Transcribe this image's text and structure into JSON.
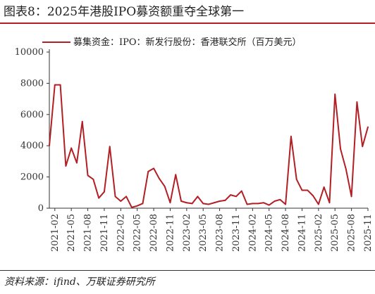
{
  "figure": {
    "title": "图表8：2025年港股IPO募资额重夺全球第一",
    "source": "资料来源：ifind、万联证券研究所"
  },
  "colors": {
    "series": "#b21f24",
    "rule": "#b21f24",
    "axis": "#333333"
  },
  "chart_data": {
    "type": "line",
    "title": "",
    "xlabel": "",
    "ylabel": "",
    "ylim": [
      0,
      10000
    ],
    "yticks": [
      0,
      2000,
      4000,
      6000,
      8000,
      10000
    ],
    "ytick_labels": [
      "0",
      "2000",
      "4000",
      "6000",
      "8000",
      "10000"
    ],
    "grid": false,
    "legend_position": "top",
    "x": [
      "2021-01",
      "2021-02",
      "2021-03",
      "2021-04",
      "2021-05",
      "2021-06",
      "2021-07",
      "2021-08",
      "2021-09",
      "2021-10",
      "2021-11",
      "2021-12",
      "2022-01",
      "2022-02",
      "2022-03",
      "2022-04",
      "2022-05",
      "2022-06",
      "2022-07",
      "2022-08",
      "2022-09",
      "2022-10",
      "2022-11",
      "2022-12",
      "2023-01",
      "2023-02",
      "2023-03",
      "2023-04",
      "2023-05",
      "2023-06",
      "2023-07",
      "2023-08",
      "2023-09",
      "2023-10",
      "2023-11",
      "2023-12",
      "2024-01",
      "2024-02",
      "2024-03",
      "2024-04",
      "2024-05",
      "2024-06",
      "2024-07",
      "2024-08",
      "2024-09",
      "2024-10",
      "2024-11",
      "2024-12",
      "2025-01",
      "2025-02",
      "2025-03",
      "2025-04",
      "2025-05",
      "2025-06",
      "2025-07",
      "2025-08",
      "2025-09",
      "2025-10",
      "2025-11"
    ],
    "x_tick_labels": [
      "2021-02",
      "2021-05",
      "2021-08",
      "2021-11",
      "2022-02",
      "2022-05",
      "2022-08",
      "2022-11",
      "2023-02",
      "2023-05",
      "2023-08",
      "2023-11",
      "2024-02",
      "2024-05",
      "2024-08",
      "2024-11",
      "2025-02",
      "2025-05",
      "2025-08",
      "2025-11"
    ],
    "series": [
      {
        "name": "募集资金：IPO：新发行股份：香港联交所（百万美元）",
        "color": "#b21f24",
        "values": [
          4000,
          7900,
          7900,
          2700,
          3850,
          2900,
          5550,
          2100,
          1850,
          650,
          1050,
          3950,
          750,
          450,
          750,
          50,
          150,
          300,
          2350,
          2550,
          1900,
          1400,
          350,
          2150,
          450,
          350,
          300,
          750,
          300,
          250,
          350,
          450,
          500,
          850,
          750,
          1100,
          250,
          300,
          300,
          350,
          200,
          450,
          550,
          250,
          4600,
          1850,
          1150,
          1150,
          800,
          250,
          1350,
          350,
          7300,
          3800,
          2500,
          750,
          6800,
          3950,
          5200
        ]
      }
    ]
  }
}
